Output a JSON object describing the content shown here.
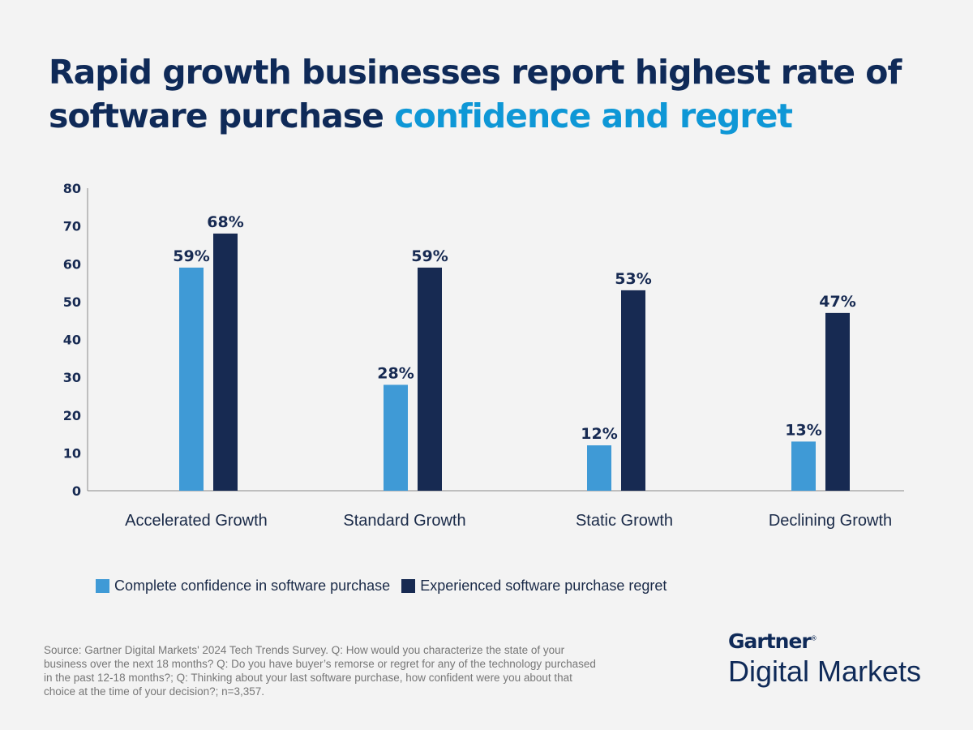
{
  "title": {
    "main": "Rapid growth businesses report highest rate of software purchase",
    "accent": "confidence and regret"
  },
  "chart_data": {
    "type": "bar",
    "categories": [
      "Accelerated Growth",
      "Standard Growth",
      "Static Growth",
      "Declining Growth"
    ],
    "series": [
      {
        "name": "Complete confidence in software purchase",
        "values": [
          59,
          28,
          12,
          13
        ],
        "labels": [
          "59%",
          "28%",
          "12%",
          "13%"
        ],
        "color": "#3f9ad6"
      },
      {
        "name": "Experienced software purchase regret",
        "values": [
          68,
          59,
          53,
          47
        ],
        "labels": [
          "68%",
          "59%",
          "53%",
          "47%"
        ],
        "color": "#172a52"
      }
    ],
    "ylim": [
      0,
      80
    ],
    "yticks": [
      "0",
      "10",
      "20",
      "30",
      "40",
      "50",
      "60",
      "70",
      "80"
    ],
    "grid": false,
    "legend_position": "bottom-left"
  },
  "source": "Source: Gartner Digital Markets' 2024 Tech Trends Survey. Q: How would you characterize the state of your business over the next 18 months? Q: Do you have buyer’s remorse or regret for any of the technology purchased in the past 12-18 months?; Q: Thinking about your last software purchase, how confident were you about that choice at the time of your decision?; n=3,357.",
  "logo": {
    "brand": "Gartner",
    "registered": "®",
    "product": "Digital Markets"
  }
}
